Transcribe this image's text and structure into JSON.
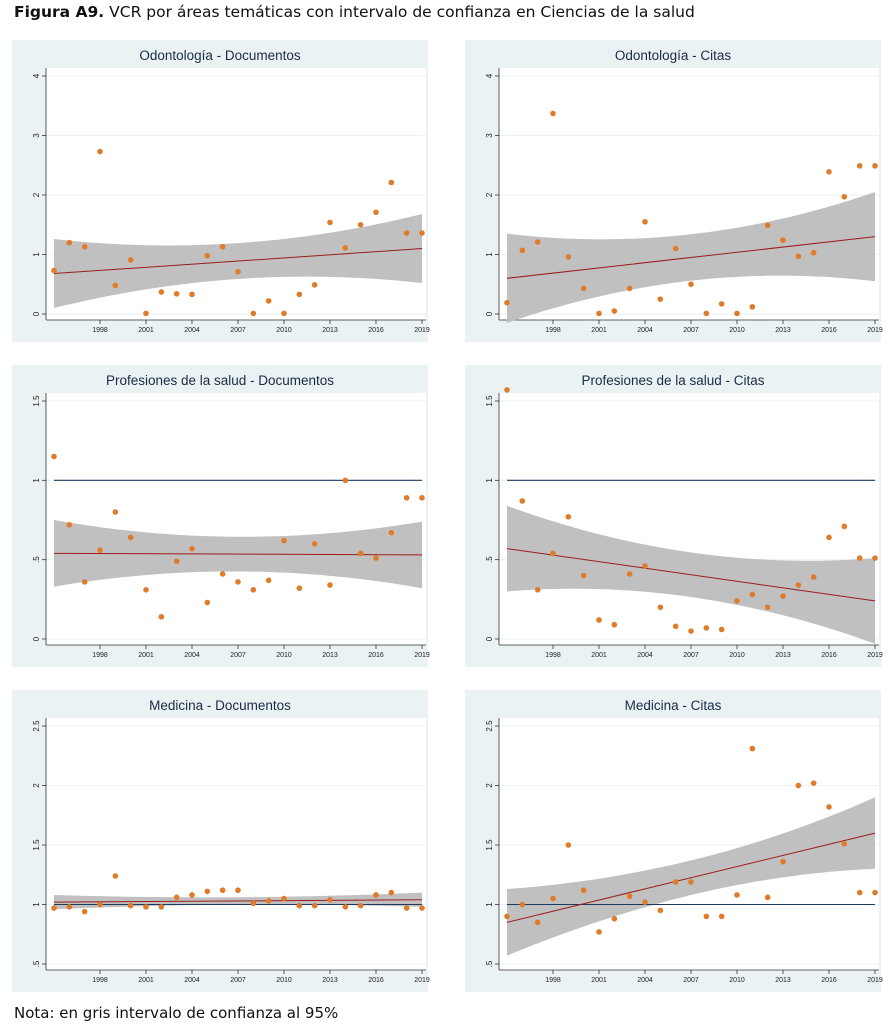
{
  "figure": {
    "label": "Figura A9.",
    "title": "VCR por áreas temáticas con intervalo de confianza en Ciencias de la salud",
    "note": "Nota: en gris intervalo de confianza al 95%"
  },
  "colors": {
    "panel_bg": "#eaf2f3",
    "point": "#e07b2a",
    "fit_line": "#9b1c1c",
    "ci_band": "#bdbdbd",
    "ref_line": "#1b3a5c"
  },
  "chart_data": [
    {
      "type": "scatter",
      "title": "Odontología - Documentos",
      "xlim": [
        1995,
        2019
      ],
      "ylim": [
        0,
        4
      ],
      "xticks": [
        1998,
        2001,
        2004,
        2007,
        2010,
        2013,
        2016,
        2019
      ],
      "xtick_labels": [
        "1998",
        "2001",
        "2004",
        "2007",
        "2010",
        "2013",
        "2016",
        "2019"
      ],
      "yticks": [
        0,
        1,
        2,
        3,
        4
      ],
      "ytick_labels": [
        "0",
        "1",
        "2",
        "3",
        "4"
      ],
      "x": [
        1995,
        1996,
        1997,
        1998,
        1999,
        2000,
        2001,
        2002,
        2003,
        2004,
        2005,
        2006,
        2007,
        2008,
        2009,
        2010,
        2011,
        2012,
        2013,
        2014,
        2015,
        2016,
        2017,
        2018,
        2019
      ],
      "y": [
        0.73,
        1.2,
        1.13,
        2.73,
        0.48,
        0.91,
        0.01,
        0.37,
        0.34,
        0.33,
        0.98,
        1.13,
        0.71,
        0.01,
        0.22,
        0.01,
        0.33,
        0.49,
        1.54,
        1.11,
        1.5,
        1.71,
        2.21,
        1.36,
        1.36
      ],
      "fit": [
        0.68,
        1.1
      ],
      "ci_lower": [
        0.1,
        0.55
      ],
      "ci_upper": [
        1.26,
        1.68
      ],
      "ref_line": null
    },
    {
      "type": "scatter",
      "title": "Odontología - Citas",
      "xlim": [
        1995,
        2019
      ],
      "ylim": [
        0,
        4
      ],
      "xticks": [
        1998,
        2001,
        2004,
        2007,
        2010,
        2013,
        2016,
        2019
      ],
      "xtick_labels": [
        "1998",
        "2001",
        "2004",
        "2007",
        "2010",
        "2013",
        "2016",
        "2019"
      ],
      "yticks": [
        0,
        1,
        2,
        3,
        4
      ],
      "ytick_labels": [
        "0",
        "1",
        "2",
        "3",
        "4"
      ],
      "x": [
        1995,
        1996,
        1997,
        1998,
        1999,
        2000,
        2001,
        2002,
        2003,
        2004,
        2005,
        2006,
        2007,
        2008,
        2009,
        2010,
        2011,
        2012,
        2013,
        2014,
        2015,
        2016,
        2017,
        2018,
        2019
      ],
      "y": [
        0.19,
        1.07,
        1.21,
        3.37,
        0.96,
        0.43,
        0.01,
        0.05,
        0.43,
        1.55,
        0.25,
        1.1,
        0.5,
        0.01,
        0.17,
        0.01,
        0.12,
        1.49,
        1.24,
        0.97,
        1.03,
        2.39,
        1.97,
        2.49,
        2.49
      ],
      "fit": [
        0.6,
        1.3
      ],
      "ci_lower": [
        -0.05,
        0.58
      ],
      "ci_upper": [
        1.35,
        2.05
      ],
      "ref_line": null
    },
    {
      "type": "scatter",
      "title": "Profesiones de la salud - Documentos",
      "xlim": [
        1995,
        2019
      ],
      "ylim": [
        0,
        1.5
      ],
      "xticks": [
        1998,
        2001,
        2004,
        2007,
        2010,
        2013,
        2016,
        2019
      ],
      "xtick_labels": [
        "1998",
        "2001",
        "2004",
        "2007",
        "2010",
        "2013",
        "2016",
        "2019"
      ],
      "yticks": [
        0,
        0.5,
        1,
        1.5
      ],
      "ytick_labels": [
        "0",
        ".5",
        "1",
        "1.5"
      ],
      "x": [
        1995,
        1996,
        1997,
        1998,
        1999,
        2000,
        2001,
        2002,
        2003,
        2004,
        2005,
        2006,
        2007,
        2008,
        2009,
        2010,
        2011,
        2012,
        2013,
        2014,
        2015,
        2016,
        2017,
        2018,
        2019
      ],
      "y": [
        1.15,
        0.72,
        0.36,
        0.56,
        0.8,
        0.64,
        0.31,
        0.14,
        0.49,
        0.57,
        0.23,
        0.41,
        0.36,
        0.31,
        0.37,
        0.62,
        0.32,
        0.6,
        0.34,
        1.0,
        0.54,
        0.51,
        0.67,
        0.89,
        0.89
      ],
      "fit": [
        0.54,
        0.53
      ],
      "ci_lower": [
        0.33,
        0.32
      ],
      "ci_upper": [
        0.75,
        0.74
      ],
      "ref_line": 1
    },
    {
      "type": "scatter",
      "title": "Profesiones de la salud - Citas",
      "xlim": [
        1995,
        2019
      ],
      "ylim": [
        0,
        1.5
      ],
      "xticks": [
        1998,
        2001,
        2004,
        2007,
        2010,
        2013,
        2016,
        2019
      ],
      "xtick_labels": [
        "1998",
        "2001",
        "2004",
        "2007",
        "2010",
        "2013",
        "2016",
        "2019"
      ],
      "yticks": [
        0,
        0.5,
        1,
        1.5
      ],
      "ytick_labels": [
        "0",
        ".5",
        "1",
        "1.5"
      ],
      "x": [
        1995,
        1996,
        1997,
        1998,
        1999,
        2000,
        2001,
        2002,
        2003,
        2004,
        2005,
        2006,
        2007,
        2008,
        2009,
        2010,
        2011,
        2012,
        2013,
        2014,
        2015,
        2016,
        2017,
        2018,
        2019
      ],
      "y": [
        1.57,
        0.87,
        0.31,
        0.54,
        0.77,
        0.4,
        0.12,
        0.09,
        0.41,
        0.46,
        0.2,
        0.08,
        0.05,
        0.07,
        0.06,
        0.24,
        0.28,
        0.2,
        0.27,
        0.34,
        0.39,
        0.64,
        0.71,
        0.51,
        0.51
      ],
      "fit": [
        0.57,
        0.24
      ],
      "ci_lower": [
        0.29,
        -0.03
      ],
      "ci_upper": [
        0.84,
        0.51
      ],
      "ref_line": 1
    },
    {
      "type": "scatter",
      "title": "Medicina - Documentos",
      "xlim": [
        1995,
        2019
      ],
      "ylim": [
        0.5,
        2.5
      ],
      "xticks": [
        1998,
        2001,
        2004,
        2007,
        2010,
        2013,
        2016,
        2019
      ],
      "xtick_labels": [
        "1998",
        "2001",
        "2004",
        "2007",
        "2010",
        "2013",
        "2016",
        "2019"
      ],
      "yticks": [
        0.5,
        1,
        1.5,
        2,
        2.5
      ],
      "ytick_labels": [
        ".5",
        "1",
        "1.5",
        "2",
        "2.5"
      ],
      "x": [
        1995,
        1996,
        1997,
        1998,
        1999,
        2000,
        2001,
        2002,
        2003,
        2004,
        2005,
        2006,
        2007,
        2008,
        2009,
        2010,
        2011,
        2012,
        2013,
        2014,
        2015,
        2016,
        2017,
        2018,
        2019
      ],
      "y": [
        0.97,
        0.98,
        0.94,
        1.0,
        1.24,
        0.99,
        0.98,
        0.98,
        1.06,
        1.08,
        1.11,
        1.12,
        1.12,
        1.01,
        1.03,
        1.05,
        0.99,
        0.99,
        1.04,
        0.98,
        0.99,
        1.08,
        1.1,
        0.97,
        0.97
      ],
      "fit": [
        1.02,
        1.04
      ],
      "ci_lower": [
        0.97,
        0.98
      ],
      "ci_upper": [
        1.08,
        1.1
      ],
      "ref_line": 1
    },
    {
      "type": "scatter",
      "title": "Medicina - Citas",
      "xlim": [
        1995,
        2019
      ],
      "ylim": [
        0.5,
        2.5
      ],
      "xticks": [
        1998,
        2001,
        2004,
        2007,
        2010,
        2013,
        2016,
        2019
      ],
      "xtick_labels": [
        "1998",
        "2001",
        "2004",
        "2007",
        "2010",
        "2013",
        "2016",
        "2019"
      ],
      "yticks": [
        0.5,
        1,
        1.5,
        2,
        2.5
      ],
      "ytick_labels": [
        ".5",
        "1",
        "1.5",
        "2",
        "2.5"
      ],
      "x": [
        1995,
        1996,
        1997,
        1998,
        1999,
        2000,
        2001,
        2002,
        2003,
        2004,
        2005,
        2006,
        2007,
        2008,
        2009,
        2010,
        2011,
        2012,
        2013,
        2014,
        2015,
        2016,
        2017,
        2018,
        2019
      ],
      "y": [
        0.9,
        1.0,
        0.85,
        1.05,
        1.5,
        1.12,
        0.77,
        0.88,
        1.07,
        1.02,
        0.95,
        1.19,
        1.19,
        0.9,
        0.9,
        1.08,
        2.31,
        1.06,
        1.36,
        2.0,
        2.02,
        1.82,
        1.51,
        1.1,
        1.1
      ],
      "fit": [
        0.85,
        1.6
      ],
      "ci_lower": [
        0.56,
        1.32
      ],
      "ci_upper": [
        1.13,
        1.9
      ],
      "ref_line": 1
    }
  ]
}
